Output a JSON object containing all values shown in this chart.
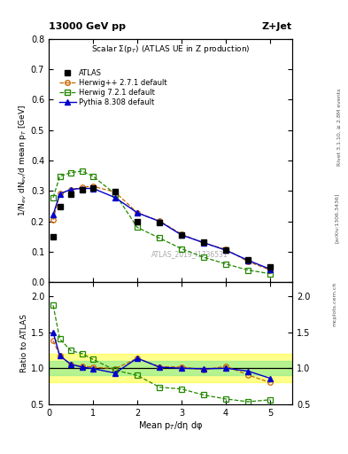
{
  "title_top": "13000 GeV pp",
  "title_right": "Z+Jet",
  "subtitle": "Scalar Σ(p$_T$) (ATLAS UE in Z production)",
  "watermark": "ATLAS_2019_I1736531",
  "ylabel_main": "1/N$_{ev}$ dN$_{ev}$/d mean p$_T$ [GeV]",
  "ylabel_ratio": "Ratio to ATLAS",
  "xlabel": "Mean p$_T$/dη dφ",
  "right_label1": "Rivet 3.1.10, ≥ 2.8M events",
  "right_label2": "[arXiv:1306.3436]",
  "right_label3": "mcplots.cern.ch",
  "atlas_x": [
    0.1,
    0.25,
    0.5,
    0.75,
    1.0,
    1.5,
    2.0,
    2.5,
    3.0,
    3.5,
    4.0,
    4.5,
    5.0
  ],
  "atlas_y": [
    0.148,
    0.247,
    0.289,
    0.303,
    0.31,
    0.298,
    0.2,
    0.197,
    0.155,
    0.131,
    0.105,
    0.075,
    0.05
  ],
  "herwigpp_x": [
    0.1,
    0.25,
    0.5,
    0.75,
    1.0,
    1.5,
    2.0,
    2.5,
    3.0,
    3.5,
    4.0,
    4.5,
    5.0
  ],
  "herwigpp_y": [
    0.205,
    0.291,
    0.303,
    0.312,
    0.315,
    0.296,
    0.228,
    0.201,
    0.158,
    0.128,
    0.108,
    0.068,
    0.04
  ],
  "herwig7_x": [
    0.1,
    0.25,
    0.5,
    0.75,
    1.0,
    1.5,
    2.0,
    2.5,
    3.0,
    3.5,
    4.0,
    4.5,
    5.0
  ],
  "herwig7_y": [
    0.278,
    0.348,
    0.36,
    0.365,
    0.348,
    0.29,
    0.18,
    0.145,
    0.11,
    0.082,
    0.06,
    0.04,
    0.028
  ],
  "pythia_x": [
    0.1,
    0.25,
    0.5,
    0.75,
    1.0,
    1.5,
    2.0,
    2.5,
    3.0,
    3.5,
    4.0,
    4.5,
    5.0
  ],
  "pythia_y": [
    0.222,
    0.29,
    0.305,
    0.308,
    0.308,
    0.278,
    0.228,
    0.2,
    0.155,
    0.13,
    0.105,
    0.072,
    0.043
  ],
  "herwigpp_ratio": [
    1.385,
    1.178,
    1.048,
    1.03,
    1.016,
    0.993,
    1.14,
    1.02,
    1.019,
    0.977,
    1.029,
    0.907,
    0.8
  ],
  "herwig7_ratio": [
    1.878,
    1.409,
    1.245,
    1.205,
    1.123,
    0.973,
    0.9,
    0.736,
    0.71,
    0.626,
    0.571,
    0.533,
    0.56
  ],
  "pythia_ratio": [
    1.5,
    1.174,
    1.055,
    1.016,
    0.994,
    0.933,
    1.14,
    1.015,
    1.0,
    0.992,
    1.0,
    0.96,
    0.86
  ],
  "color_atlas": "#000000",
  "color_herwigpp": "#cc6600",
  "color_herwig7": "#228800",
  "color_pythia": "#0000cc",
  "ylim_main": [
    0.0,
    0.8
  ],
  "ylim_ratio": [
    0.5,
    2.2
  ],
  "xlim": [
    0.0,
    5.5
  ],
  "yticks_main": [
    0.0,
    0.1,
    0.2,
    0.3,
    0.4,
    0.5,
    0.6,
    0.7,
    0.8
  ],
  "yticks_ratio": [
    0.5,
    1.0,
    1.5,
    2.0
  ],
  "xticks": [
    0,
    1,
    2,
    3,
    4,
    5
  ]
}
